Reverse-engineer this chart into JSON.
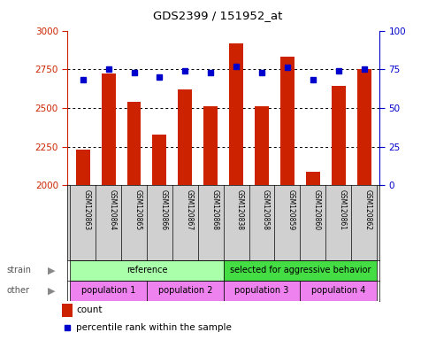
{
  "title": "GDS2399 / 151952_at",
  "samples": [
    "GSM120863",
    "GSM120864",
    "GSM120865",
    "GSM120866",
    "GSM120867",
    "GSM120868",
    "GSM120838",
    "GSM120858",
    "GSM120859",
    "GSM120860",
    "GSM120861",
    "GSM120862"
  ],
  "counts": [
    2230,
    2720,
    2540,
    2330,
    2620,
    2510,
    2920,
    2510,
    2830,
    2090,
    2640,
    2750
  ],
  "percentiles": [
    68,
    75,
    73,
    70,
    74,
    73,
    77,
    73,
    76,
    68,
    74,
    75
  ],
  "ylim_left": [
    2000,
    3000
  ],
  "ylim_right": [
    0,
    100
  ],
  "yticks_left": [
    2000,
    2250,
    2500,
    2750,
    3000
  ],
  "yticks_right": [
    0,
    25,
    50,
    75,
    100
  ],
  "bar_color": "#cc2200",
  "dot_color": "#0000cc",
  "grid_color": "#000000",
  "axis_left_color": "#cc2200",
  "axis_right_color": "#0000cc",
  "tick_area_bg": "#d0d0d0",
  "strain_ref_bg": "#aaffaa",
  "strain_agg_bg": "#44dd44",
  "other_bg": "#ee82ee",
  "strain_labels": [
    {
      "label": "reference",
      "start": 0,
      "end": 5
    },
    {
      "label": "selected for aggressive behavior",
      "start": 6,
      "end": 11
    }
  ],
  "other_labels": [
    {
      "label": "population 1",
      "start": 0,
      "end": 2
    },
    {
      "label": "population 2",
      "start": 3,
      "end": 5
    },
    {
      "label": "population 3",
      "start": 6,
      "end": 8
    },
    {
      "label": "population 4",
      "start": 9,
      "end": 11
    }
  ],
  "legend_count_label": "count",
  "legend_pct_label": "percentile rank within the sample",
  "strain_label": "strain",
  "other_label": "other"
}
